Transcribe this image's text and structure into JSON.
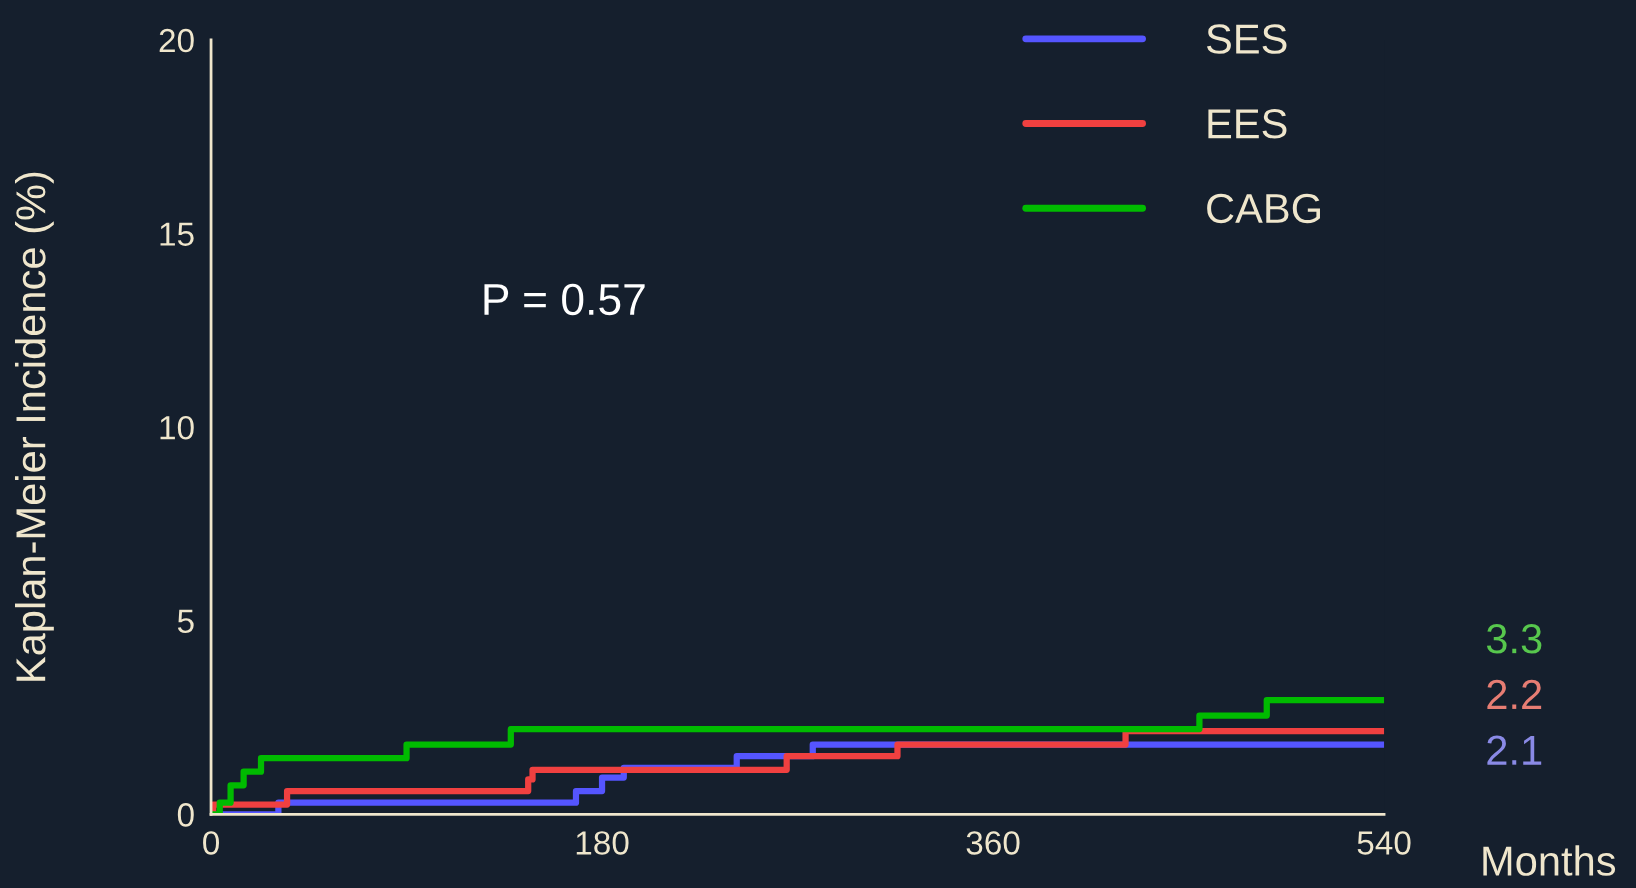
{
  "chart_data": {
    "type": "step",
    "xlabel": "Months",
    "ylabel": "Kaplan-Meier Incidence (%)",
    "xlim": [
      0,
      540
    ],
    "xticks": [
      0,
      180,
      360,
      540
    ],
    "ylim": [
      0,
      20
    ],
    "yticks": [
      0,
      5,
      10,
      15,
      20
    ],
    "grid": false,
    "legend": "top right",
    "marker": "none",
    "line_style": "solid",
    "series": [
      {
        "name": "SES",
        "color": "#5555ff",
        "x": [
          0,
          31,
          168,
          180,
          190,
          242,
          277,
          540
        ],
        "values": [
          0,
          0.3,
          0.6,
          0.95,
          1.2,
          1.5,
          1.8,
          1.8
        ]
      },
      {
        "name": "EES",
        "color": "#f04040",
        "x": [
          0,
          1,
          35,
          146,
          148,
          265,
          316,
          421,
          540
        ],
        "values": [
          0,
          0.25,
          0.6,
          0.9,
          1.15,
          1.5,
          1.8,
          2.15,
          2.15
        ]
      },
      {
        "name": "CABG",
        "color": "#00bb00",
        "x": [
          0,
          4,
          9,
          15,
          23,
          90,
          138,
          455,
          486,
          540
        ],
        "values": [
          0,
          0.3,
          0.75,
          1.1,
          1.45,
          1.8,
          2.2,
          2.55,
          2.95,
          2.95
        ]
      }
    ],
    "annotations": [
      "P = 0.57",
      "3.3",
      "2.2",
      "2.1"
    ]
  }
}
